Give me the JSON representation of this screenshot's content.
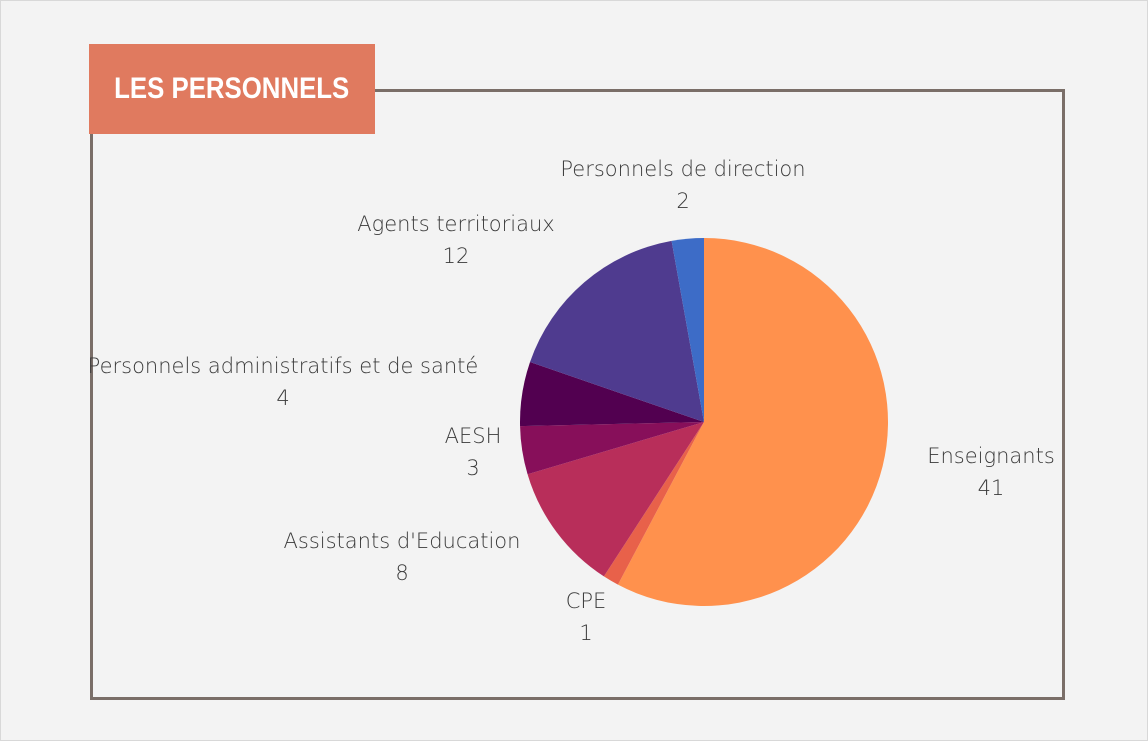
{
  "title": "LES PERSONNELS",
  "chart_data": {
    "type": "pie",
    "title": "LES PERSONNELS",
    "categories": [
      "Enseignants",
      "CPE",
      "Assistants d'Education",
      "AESH",
      "Personnels administratifs et de santé",
      "Agents territoriaux",
      "Personnels de direction"
    ],
    "values": [
      41,
      1,
      8,
      3,
      4,
      12,
      2
    ],
    "colors": [
      "#ff914d",
      "#e8614a",
      "#b82e5a",
      "#870f5a",
      "#520050",
      "#4f3b8f",
      "#3d6cc7"
    ],
    "legend": "none",
    "data_labels": true
  }
}
